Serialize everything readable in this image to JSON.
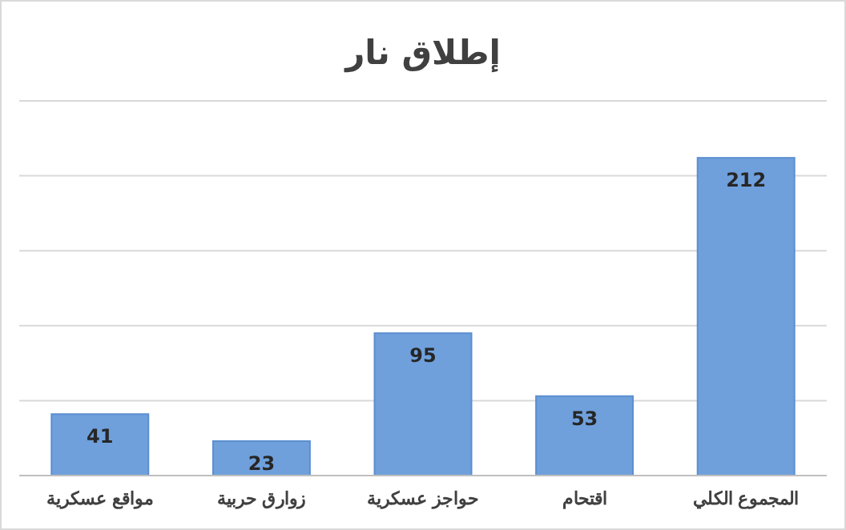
{
  "chart_data": {
    "type": "bar",
    "title": "إطلاق نار",
    "categories": [
      "مواقع عسكرية",
      "زوارق حربية",
      "حواجز عسكرية",
      "اقتحام",
      "المجموع  الكلي"
    ],
    "values": [
      41,
      23,
      95,
      53,
      212
    ],
    "color": "#6fa0dc",
    "ylim": [
      0,
      250
    ],
    "yticks": [
      {
        "value": 0,
        "label": null
      },
      {
        "value": 50,
        "label": null
      },
      {
        "value": 100,
        "label": null
      },
      {
        "value": 150,
        "label": null
      },
      {
        "value": 200,
        "label": null
      },
      {
        "value": 250,
        "label": null
      }
    ],
    "grid": "y",
    "data_labels": true,
    "tick_labels": "x"
  }
}
